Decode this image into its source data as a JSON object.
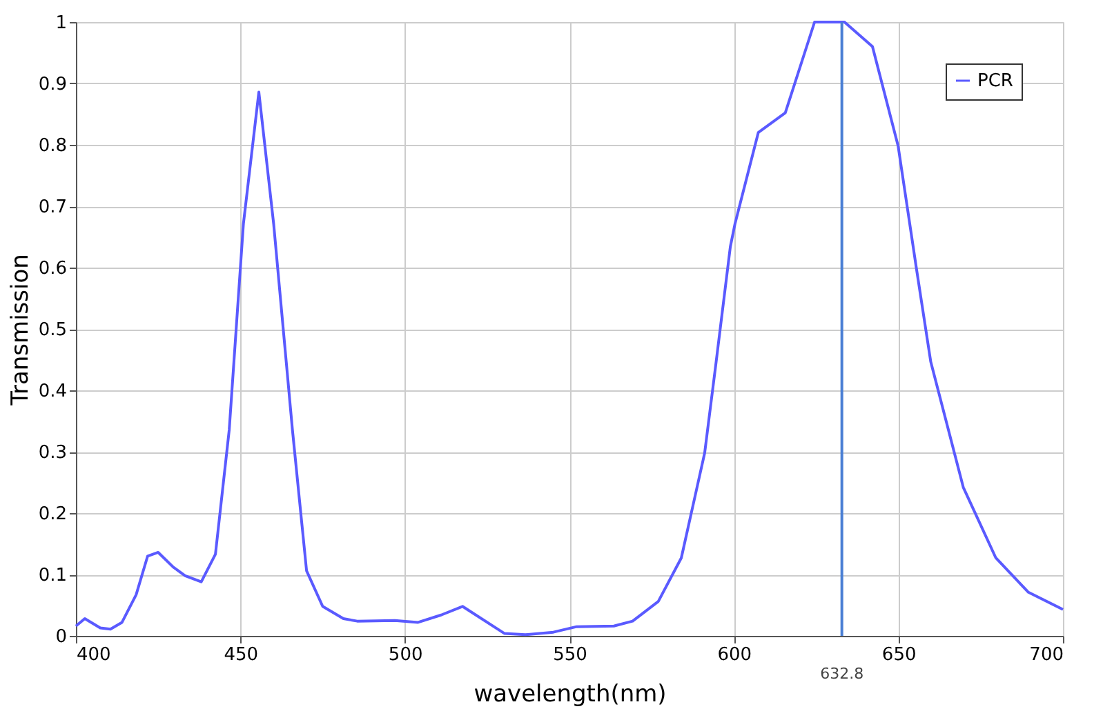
{
  "chart_data": {
    "type": "line",
    "xlabel": "wavelength(nm)",
    "ylabel": "Transmission",
    "xlim": [
      400,
      700
    ],
    "xticks": [
      400,
      450,
      500,
      550,
      600,
      650,
      700
    ],
    "ylim": [
      0,
      1
    ],
    "yticks": [
      0,
      0.1,
      0.2,
      0.3,
      0.4,
      0.5,
      0.6,
      0.7,
      0.8,
      0.9,
      1
    ],
    "grid": true,
    "legend": "top right",
    "marker": "none",
    "line_style": "solid",
    "series": [
      {
        "name": "PCR",
        "color": "#5a5aff",
        "x": [
          400,
          402.7,
          407.4,
          410.5,
          414,
          418.3,
          421.8,
          425,
          429.6,
          433.2,
          438.1,
          442.4,
          446.6,
          450.9,
          455.6,
          460.1,
          465.8,
          470.1,
          475,
          481.3,
          485.5,
          496.9,
          504,
          511,
          517.5,
          530.2,
          536.6,
          545.1,
          552.2,
          563.5,
          569.2,
          577,
          584,
          591.1,
          594.6,
          598.9,
          600.3,
          607.4,
          615.6,
          624.5,
          631.2,
          633.6,
          642.1,
          649.9,
          655.5,
          659.8,
          669.7,
          679.6,
          689.5,
          700
        ],
        "values": [
          0.016,
          0.028,
          0.013,
          0.011,
          0.022,
          0.067,
          0.13,
          0.136,
          0.112,
          0.098,
          0.088,
          0.133,
          0.336,
          0.671,
          0.886,
          0.671,
          0.336,
          0.106,
          0.048,
          0.028,
          0.024,
          0.025,
          0.022,
          0.034,
          0.048,
          0.004,
          0.002,
          0.006,
          0.015,
          0.016,
          0.024,
          0.056,
          0.127,
          0.298,
          0.447,
          0.634,
          0.671,
          0.82,
          0.852,
          1.0,
          1.0,
          1.0,
          0.96,
          0.798,
          0.597,
          0.447,
          0.242,
          0.127,
          0.071,
          0.043
        ]
      }
    ],
    "ref_lines": [
      {
        "axis": "x",
        "value": 632.8,
        "label": "632.8",
        "color": "#4a7fd4"
      }
    ]
  }
}
